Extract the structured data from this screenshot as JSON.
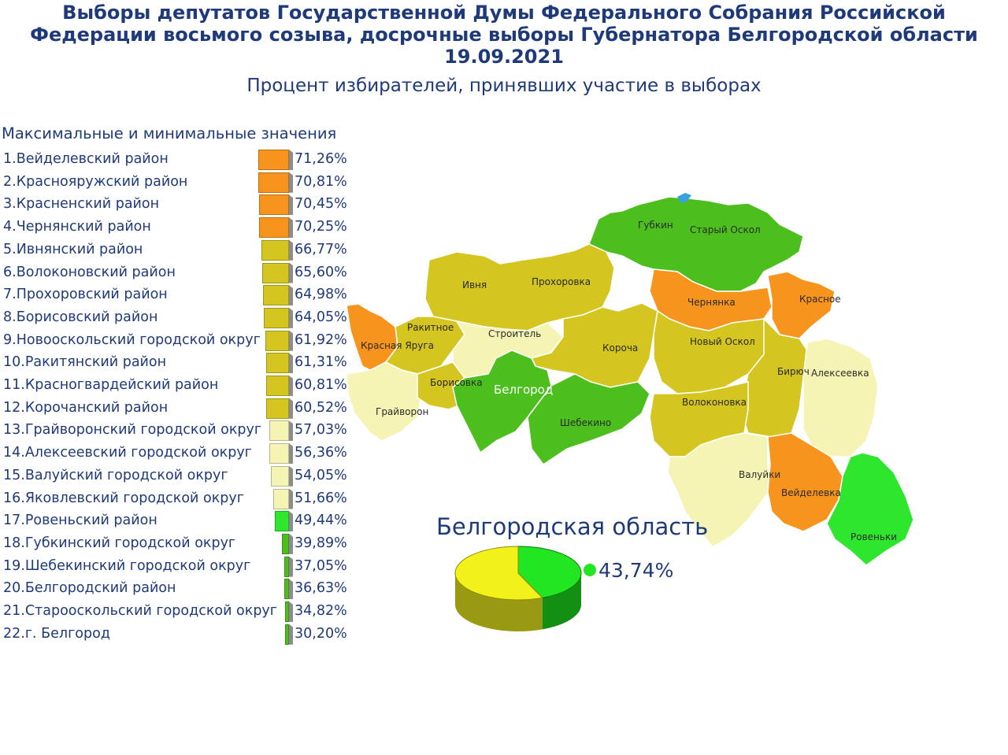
{
  "header": {
    "title_line1": "Выборы депутатов Государственной Думы Федерального Собрания Российской",
    "title_line2": "Федерации восьмого созыва, досрочные выборы Губернатора Белгородской области",
    "title_line3": "19.09.2021",
    "subtitle": "Процент избирателей, принявших участие в выборах"
  },
  "list": {
    "heading": "Максимальные и минимальные значения",
    "items": [
      {
        "label": "1.Вейделевский район",
        "value": "71,26%"
      },
      {
        "label": "2.Краснояружский район",
        "value": "70,81%"
      },
      {
        "label": "3.Красненский район",
        "value": "70,45%"
      },
      {
        "label": "4.Чернянский район",
        "value": "70,25%"
      },
      {
        "label": "5.Ивнянский район",
        "value": "66,77%"
      },
      {
        "label": "6.Волоконовский район",
        "value": "65,60%"
      },
      {
        "label": "7.Прохоровский район",
        "value": "64,98%"
      },
      {
        "label": "8.Борисовский район",
        "value": "64,05%"
      },
      {
        "label": "9.Новооскольский городской округ",
        "value": "61,92%"
      },
      {
        "label": "10.Ракитянский район",
        "value": "61,31%"
      },
      {
        "label": "11.Красногвардейский район",
        "value": "60,81%"
      },
      {
        "label": "12.Корочанский район",
        "value": "60,52%"
      },
      {
        "label": "13.Грайворонский городской округ",
        "value": "57,03%"
      },
      {
        "label": "14.Алексеевский городской округ",
        "value": "56,36%"
      },
      {
        "label": "15.Валуйский городской округ",
        "value": "54,05%"
      },
      {
        "label": "16.Яковлевский городской округ",
        "value": "51,66%"
      },
      {
        "label": "17.Ровеньский район",
        "value": "49,44%"
      },
      {
        "label": "18.Губкинский городской округ",
        "value": "39,89%"
      },
      {
        "label": "19.Шебекинский городской округ",
        "value": "37,05%"
      },
      {
        "label": "20.Белгородский район",
        "value": "36,63%"
      },
      {
        "label": "21.Старооскольский городской округ",
        "value": "34,82%"
      },
      {
        "label": "22.г. Белгород",
        "value": "30,20%"
      }
    ]
  },
  "map": {
    "labels": {
      "gubkin": "Губкин",
      "stary_oskol": "Старый Оскол",
      "ivnya": "Ивня",
      "prokhorovka": "Прохоровка",
      "chernyanka": "Чернянка",
      "krasnoe": "Красное",
      "rakitnoe": "Ракитное",
      "stroitel": "Строитель",
      "krasnaya_yaruga": "Красная Яруга",
      "korocha": "Короча",
      "novy_oskol": "Новый Оскол",
      "biryuch": "Бирюч",
      "alekseevka": "Алексеевка",
      "borisovka": "Борисовка",
      "belgorod": "Белгород",
      "grayvoron": "Грайворон",
      "shebekino": "Шебекино",
      "volokonovka": "Волоконовка",
      "valuyki": "Валуйки",
      "veydelevka": "Вейделевка",
      "rovenki": "Ровеньки"
    }
  },
  "summary": {
    "region_title": "Белгородская область",
    "value": "43,74%"
  },
  "colors": {
    "title": "#1f3a7a",
    "orange": "#f7941d",
    "yellow": "#d4c521",
    "pale": "#f5f4b4",
    "green": "#4cbf1f",
    "bright_green": "#2ee62e",
    "pie_yellow": "#f2f21a",
    "pie_green": "#22e622"
  },
  "chart_data": [
    {
      "type": "bar",
      "title": "Максимальные и минимальные значения",
      "categories": [
        "Вейделевский район",
        "Краснояружский район",
        "Красненский район",
        "Чернянский район",
        "Ивнянский район",
        "Волоконовский район",
        "Прохоровский район",
        "Борисовский район",
        "Новооскольский городской округ",
        "Ракитянский район",
        "Красногвардейский район",
        "Корочанский район",
        "Грайворонский городской округ",
        "Алексеевский городской округ",
        "Валуйский городской округ",
        "Яковлевский городской округ",
        "Ровеньский район",
        "Губкинский городской округ",
        "Шебекинский городской округ",
        "Белгородский район",
        "Старооскольский городской округ",
        "г. Белгород"
      ],
      "values": [
        71.26,
        70.81,
        70.45,
        70.25,
        66.77,
        65.6,
        64.98,
        64.05,
        61.92,
        61.31,
        60.81,
        60.52,
        57.03,
        56.36,
        54.05,
        51.66,
        49.44,
        39.89,
        37.05,
        36.63,
        34.82,
        30.2
      ],
      "unit": "%"
    },
    {
      "type": "pie",
      "title": "Белгородская область",
      "slices": [
        {
          "label": "43,74%",
          "value": 43.74
        },
        {
          "label": "",
          "value": 56.26
        }
      ]
    }
  ]
}
